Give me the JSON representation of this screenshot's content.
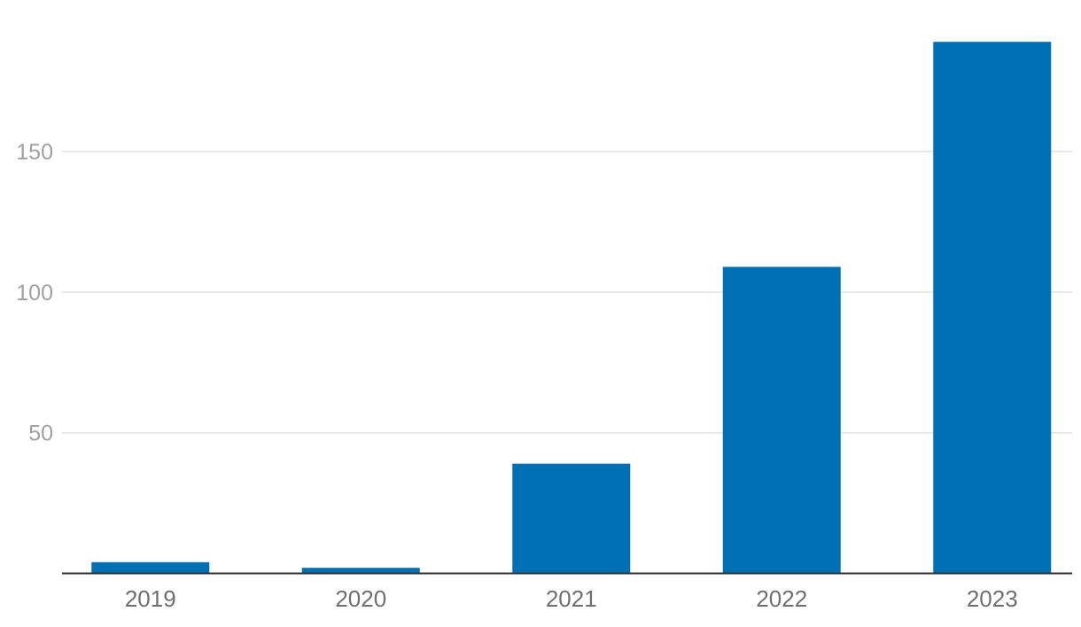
{
  "chart_data": {
    "type": "bar",
    "categories": [
      "2019",
      "2020",
      "2021",
      "2022",
      "2023"
    ],
    "values": [
      4,
      2,
      39,
      109,
      189
    ],
    "yticks": [
      "50",
      "100",
      "150"
    ],
    "ylim": [
      0,
      200
    ],
    "grid": true,
    "bar_color": "#0070b5",
    "grid_color": "#e1e1e1",
    "axis_color": "#333333",
    "title": "",
    "xlabel": "",
    "ylabel": ""
  }
}
